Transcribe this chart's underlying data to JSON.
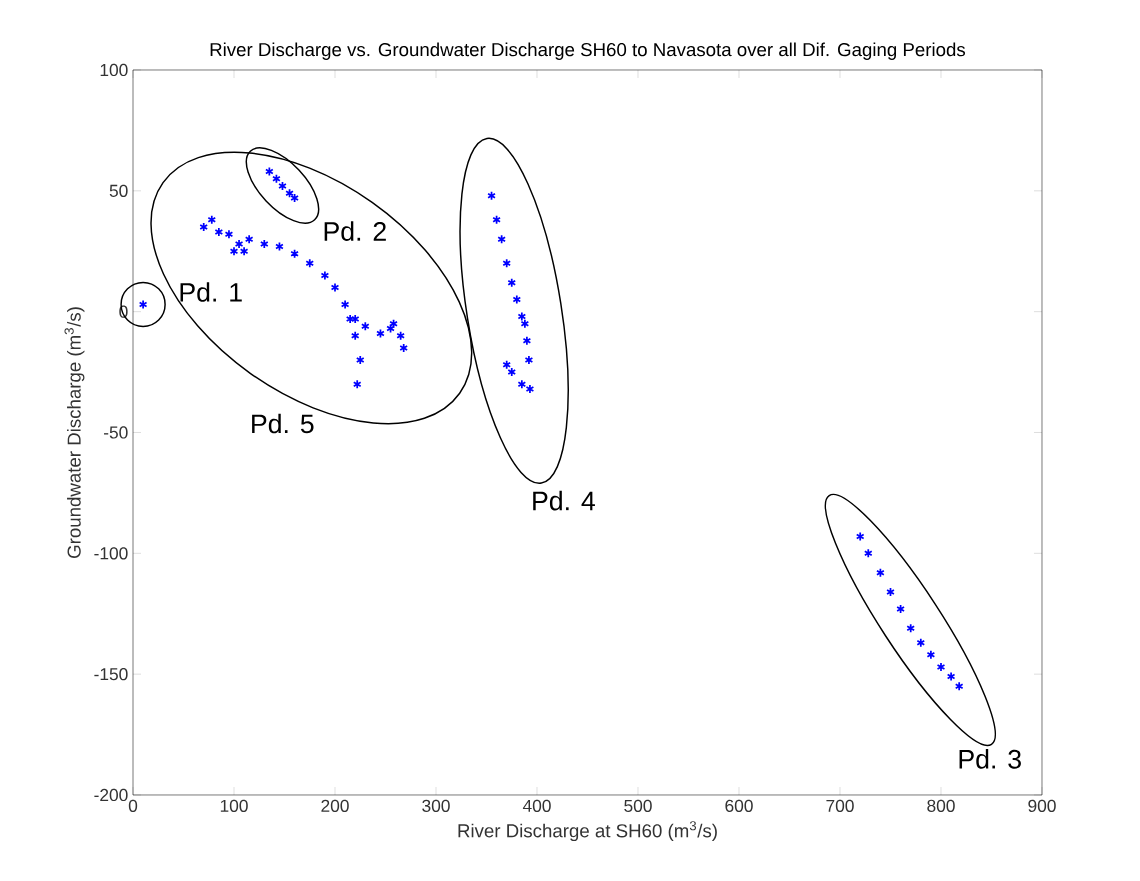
{
  "chart_data": {
    "type": "scatter",
    "title": "River Discharge vs. Groundwater Discharge SH60 to Navasota over all Dif. Gaging Periods",
    "xlabel": "River Discharge at SH60 (m$^{3}$/s)",
    "ylabel": "Groundwater Discharge (m$^{3}$/s)",
    "xlim": [
      0,
      900
    ],
    "ylim": [
      -200,
      100
    ],
    "xticks": [
      0,
      100,
      200,
      300,
      400,
      500,
      600,
      700,
      800,
      900
    ],
    "yticks": [
      -200,
      -150,
      -100,
      -50,
      0,
      50,
      100
    ],
    "grid": false,
    "marker": "cross",
    "series": [
      {
        "color": "#0000ff",
        "x": [
          10
        ],
        "values": [
          3
        ]
      },
      {
        "color": "#0000ff",
        "x": [
          135,
          142,
          148,
          155,
          160
        ],
        "values": [
          58,
          55,
          52,
          49,
          47
        ]
      },
      {
        "color": "#0000ff",
        "x": [
          720,
          728,
          740,
          750,
          760,
          770,
          780,
          790,
          800,
          810,
          818
        ],
        "values": [
          -93,
          -100,
          -108,
          -116,
          -123,
          -131,
          -137,
          -142,
          -147,
          -151,
          -155
        ]
      },
      {
        "color": "#0000ff",
        "x": [
          355,
          360,
          365,
          370,
          375,
          380,
          385,
          388,
          390,
          392,
          393,
          385,
          375,
          370
        ],
        "values": [
          48,
          38,
          30,
          20,
          12,
          5,
          -2,
          -5,
          -12,
          -20,
          -32,
          -30,
          -25,
          -22
        ]
      },
      {
        "color": "#0000ff",
        "x": [
          70,
          78,
          85,
          95,
          100,
          105,
          110,
          115,
          130,
          145,
          160,
          175,
          190,
          200,
          210,
          215,
          220,
          225,
          222,
          220,
          230,
          245,
          255,
          258,
          265,
          268
        ],
        "values": [
          35,
          38,
          33,
          32,
          25,
          28,
          25,
          30,
          28,
          27,
          24,
          20,
          15,
          10,
          3,
          -3,
          -10,
          -20,
          -30,
          -3,
          -6,
          -9,
          -7,
          -5,
          -10,
          -15
        ]
      }
    ],
    "annotations": [
      "Pd. 1",
      "Pd. 2",
      "Pd. 3",
      "Pd. 4",
      "Pd. 5"
    ]
  }
}
